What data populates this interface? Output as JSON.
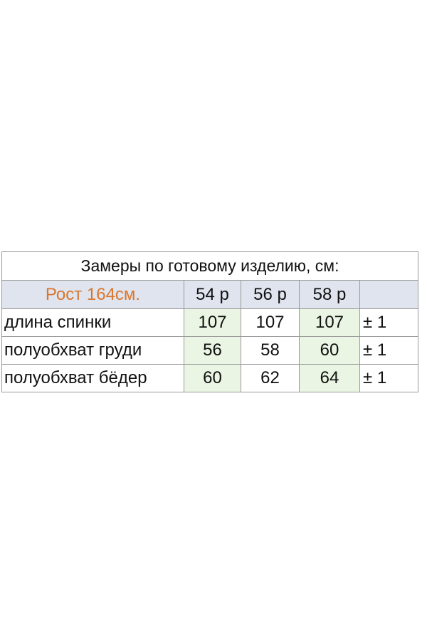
{
  "table": {
    "title": "Замеры по готовому изделию, см:",
    "header": {
      "label": "Рост 164см.",
      "sizes": [
        "54 р",
        "56 р",
        "58 р"
      ],
      "extra": ""
    },
    "rows": [
      {
        "label": "длина спинки",
        "values": [
          "107",
          "107",
          "107"
        ],
        "tolerance": "± 1"
      },
      {
        "label": "полуобхват груди",
        "values": [
          "56",
          "58",
          "60"
        ],
        "tolerance": "± 1"
      },
      {
        "label": "полуобхват бёдер",
        "values": [
          "60",
          "62",
          "64"
        ],
        "tolerance": "± 1"
      }
    ]
  },
  "colors": {
    "label_accent": "#d9772f",
    "header_bg": "#dfe4ee",
    "highlight_bg": "#eaf5e4",
    "border": "#9a9a9a"
  }
}
